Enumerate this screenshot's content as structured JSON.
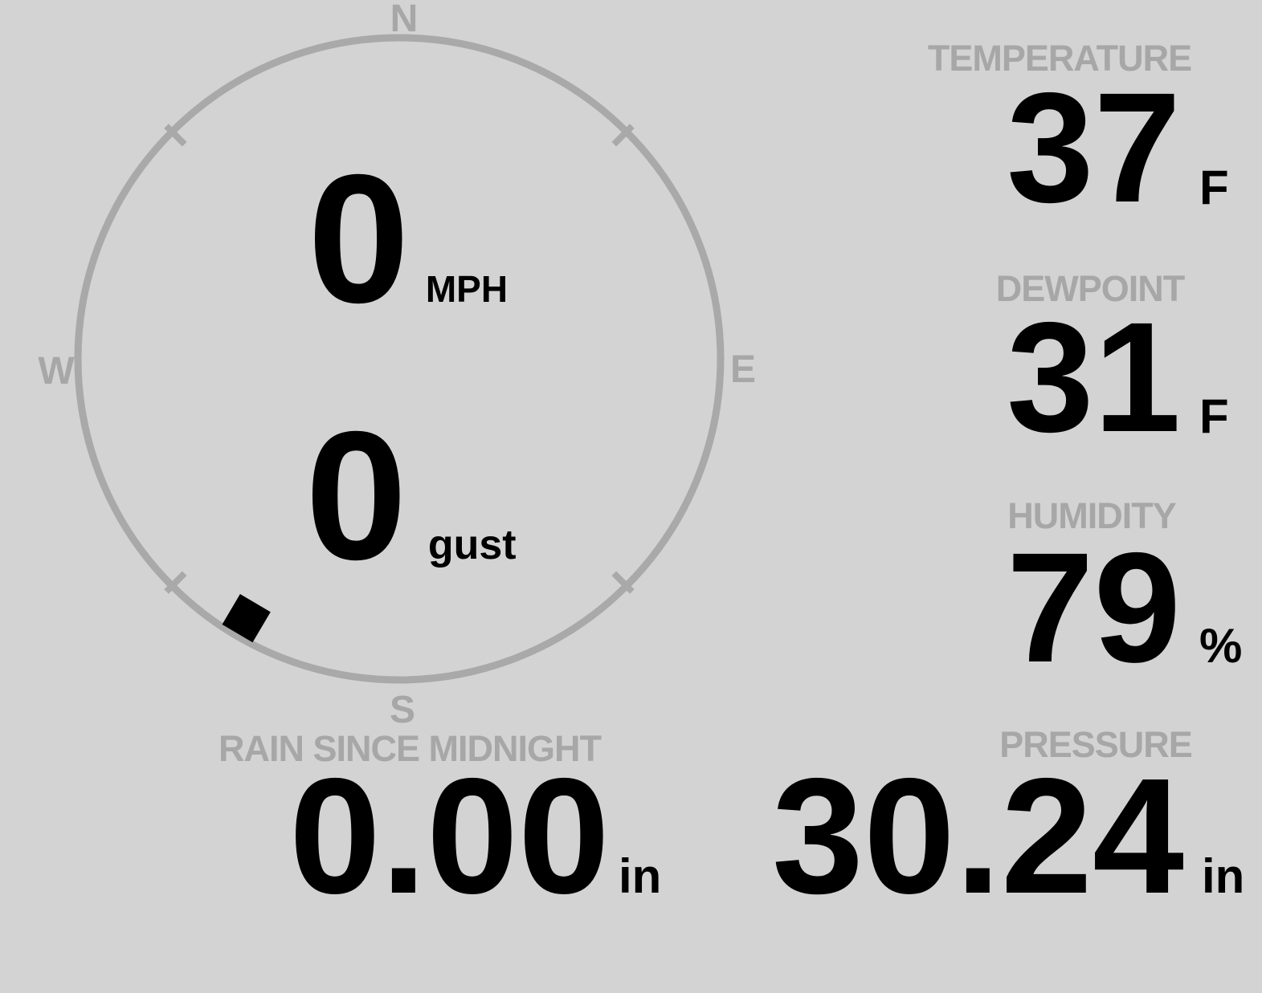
{
  "colors": {
    "background": "#d3d3d3",
    "muted_gray": "#a7a7a7",
    "ring_gray": "#a9a9a9",
    "value_black": "#000000"
  },
  "compass": {
    "cardinals": {
      "north": "N",
      "east": "E",
      "south": "S",
      "west": "W"
    },
    "wind_speed": {
      "value": "0",
      "unit": "MPH"
    },
    "wind_gust": {
      "value": "0",
      "unit": "gust"
    },
    "wind_direction_deg": 210.5
  },
  "metrics": {
    "temperature": {
      "label": "TEMPERATURE",
      "value": "37",
      "unit": "F"
    },
    "dewpoint": {
      "label": "DEWPOINT",
      "value": "31",
      "unit": "F"
    },
    "humidity": {
      "label": "HUMIDITY",
      "value": "79",
      "unit": "%"
    },
    "rain": {
      "label": "RAIN SINCE MIDNIGHT",
      "value": "0.00",
      "unit": "in"
    },
    "pressure": {
      "label": "PRESSURE",
      "value": "30.24",
      "unit": "in"
    }
  }
}
